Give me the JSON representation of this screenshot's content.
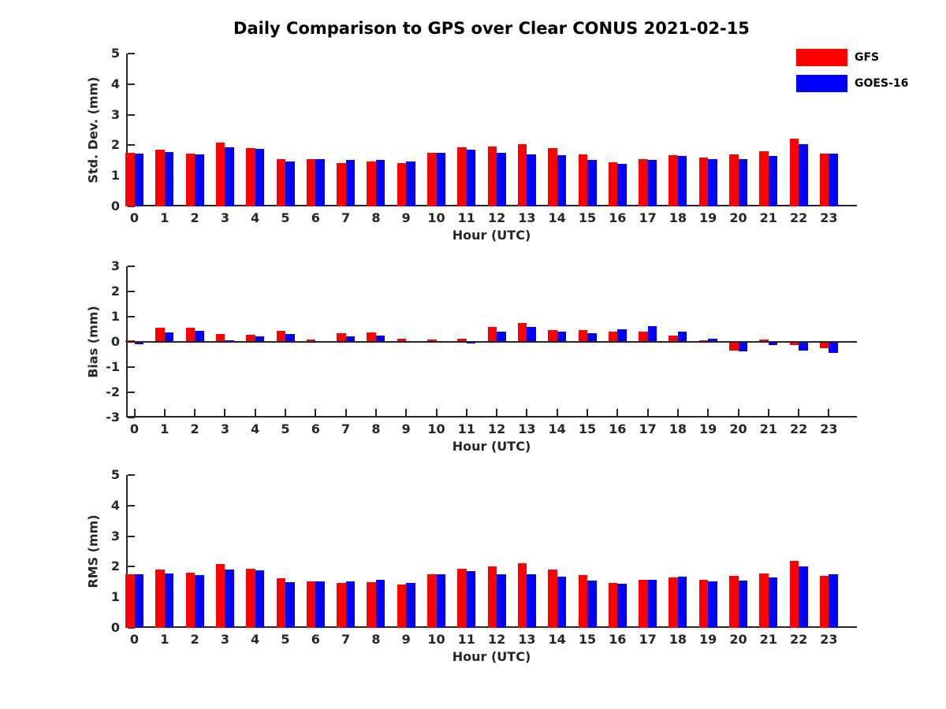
{
  "title": "Daily Comparison to GPS over Clear CONUS 2021-02-15",
  "legend": {
    "position": "top-right",
    "items": [
      {
        "label": "GFS",
        "color": "#ff0000"
      },
      {
        "label": "GOES-16",
        "color": "#0000ff"
      }
    ]
  },
  "colors": {
    "gfs": "#ff0000",
    "goes16": "#0000ff",
    "axis": "#262626",
    "background": "#ffffff"
  },
  "chart_data": [
    {
      "type": "bar",
      "title": "",
      "ylabel": "Std. Dev. (mm)",
      "xlabel": "Hour (UTC)",
      "categories": [
        0,
        1,
        2,
        3,
        4,
        5,
        6,
        7,
        8,
        9,
        10,
        11,
        12,
        13,
        14,
        15,
        16,
        17,
        18,
        19,
        20,
        21,
        22,
        23
      ],
      "ylim": [
        0,
        5
      ],
      "yticks": [
        0,
        1,
        2,
        3,
        4,
        5
      ],
      "grid": false,
      "legend_position": "top-right-of-figure",
      "series": [
        {
          "name": "GFS",
          "color": "#ff0000",
          "values": [
            1.75,
            1.85,
            1.73,
            2.08,
            1.92,
            1.55,
            1.54,
            1.43,
            1.48,
            1.43,
            1.75,
            1.93,
            1.97,
            2.04,
            1.9,
            1.7,
            1.45,
            1.55,
            1.67,
            1.6,
            1.69,
            1.81,
            2.22,
            1.72
          ]
        },
        {
          "name": "GOES-16",
          "color": "#0000ff",
          "values": [
            1.73,
            1.78,
            1.69,
            1.93,
            1.89,
            1.47,
            1.54,
            1.51,
            1.53,
            1.48,
            1.75,
            1.85,
            1.75,
            1.7,
            1.67,
            1.52,
            1.38,
            1.53,
            1.64,
            1.54,
            1.55,
            1.66,
            2.03,
            1.72
          ]
        }
      ]
    },
    {
      "type": "bar",
      "title": "",
      "ylabel": "Bias (mm)",
      "xlabel": "Hour (UTC)",
      "categories": [
        0,
        1,
        2,
        3,
        4,
        5,
        6,
        7,
        8,
        9,
        10,
        11,
        12,
        13,
        14,
        15,
        16,
        17,
        18,
        19,
        20,
        21,
        22,
        23
      ],
      "ylim": [
        -3,
        3
      ],
      "yticks": [
        -3,
        -2,
        -1,
        0,
        1,
        2,
        3
      ],
      "zero_line": true,
      "grid": false,
      "series": [
        {
          "name": "GFS",
          "color": "#ff0000",
          "values": [
            0.06,
            0.55,
            0.57,
            0.32,
            0.28,
            0.44,
            0.1,
            0.35,
            0.36,
            0.13,
            0.08,
            0.12,
            0.58,
            0.74,
            0.46,
            0.46,
            0.41,
            0.42,
            0.26,
            0.07,
            -0.33,
            0.09,
            -0.14,
            -0.25
          ]
        },
        {
          "name": "GOES-16",
          "color": "#0000ff",
          "values": [
            -0.1,
            0.37,
            0.43,
            0.07,
            0.22,
            0.3,
            0.02,
            0.22,
            0.24,
            0.03,
            0.01,
            -0.06,
            0.42,
            0.58,
            0.42,
            0.34,
            0.5,
            0.62,
            0.42,
            0.12,
            -0.37,
            -0.12,
            -0.34,
            -0.45
          ]
        }
      ]
    },
    {
      "type": "bar",
      "title": "",
      "ylabel": "RMS (mm)",
      "xlabel": "Hour (UTC)",
      "categories": [
        0,
        1,
        2,
        3,
        4,
        5,
        6,
        7,
        8,
        9,
        10,
        11,
        12,
        13,
        14,
        15,
        16,
        17,
        18,
        19,
        20,
        21,
        22,
        23
      ],
      "ylim": [
        0,
        5
      ],
      "yticks": [
        0,
        1,
        2,
        3,
        4,
        5
      ],
      "grid": false,
      "series": [
        {
          "name": "GFS",
          "color": "#ff0000",
          "values": [
            1.75,
            1.91,
            1.8,
            2.09,
            1.93,
            1.62,
            1.53,
            1.48,
            1.5,
            1.43,
            1.75,
            1.93,
            2.02,
            2.12,
            1.92,
            1.73,
            1.48,
            1.56,
            1.64,
            1.58,
            1.7,
            1.79,
            2.19,
            1.7
          ]
        },
        {
          "name": "GOES-16",
          "color": "#0000ff",
          "values": [
            1.75,
            1.79,
            1.73,
            1.91,
            1.89,
            1.5,
            1.51,
            1.51,
            1.56,
            1.47,
            1.75,
            1.85,
            1.76,
            1.76,
            1.68,
            1.55,
            1.44,
            1.58,
            1.67,
            1.51,
            1.55,
            1.64,
            2.02,
            1.76
          ]
        }
      ]
    }
  ]
}
